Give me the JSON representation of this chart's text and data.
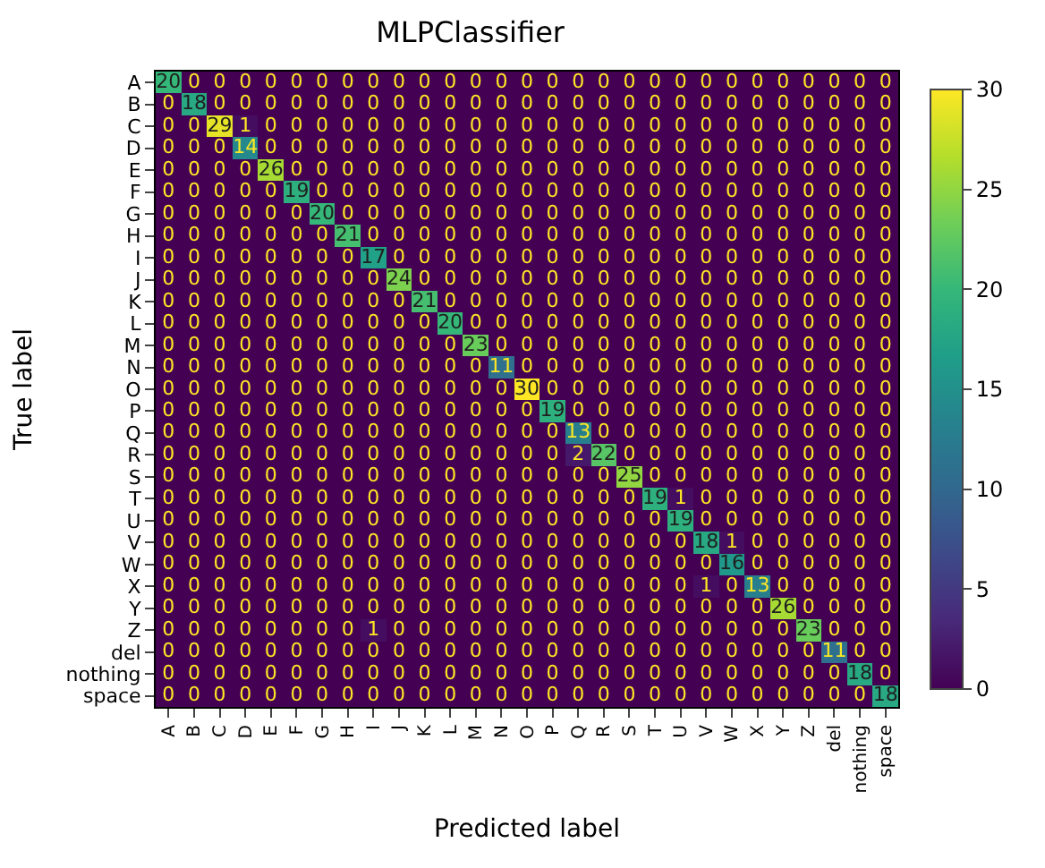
{
  "chart_data": {
    "type": "heatmap",
    "title": "MLPClassifier",
    "xlabel": "Predicted label",
    "ylabel": "True label",
    "categories": [
      "A",
      "B",
      "C",
      "D",
      "E",
      "F",
      "G",
      "H",
      "I",
      "J",
      "K",
      "L",
      "M",
      "N",
      "O",
      "P",
      "Q",
      "R",
      "S",
      "T",
      "U",
      "V",
      "W",
      "X",
      "Y",
      "Z",
      "del",
      "nothing",
      "space"
    ],
    "y_categories": [
      "A",
      "B",
      "C",
      "D",
      "E",
      "F",
      "G",
      "H",
      "I",
      "J",
      "K",
      "L",
      "M",
      "N",
      "O",
      "P",
      "Q",
      "R",
      "S",
      "T",
      "U",
      "V",
      "W",
      "X",
      "Y",
      "Z",
      "del",
      "nothing",
      "space"
    ],
    "cells": [
      [
        20,
        0,
        0,
        0,
        0,
        0,
        0,
        0,
        0,
        0,
        0,
        0,
        0,
        0,
        0,
        0,
        0,
        0,
        0,
        0,
        0,
        0,
        0,
        0,
        0,
        0,
        0,
        0,
        0
      ],
      [
        0,
        18,
        0,
        0,
        0,
        0,
        0,
        0,
        0,
        0,
        0,
        0,
        0,
        0,
        0,
        0,
        0,
        0,
        0,
        0,
        0,
        0,
        0,
        0,
        0,
        0,
        0,
        0,
        0
      ],
      [
        0,
        0,
        29,
        1,
        0,
        0,
        0,
        0,
        0,
        0,
        0,
        0,
        0,
        0,
        0,
        0,
        0,
        0,
        0,
        0,
        0,
        0,
        0,
        0,
        0,
        0,
        0,
        0,
        0
      ],
      [
        0,
        0,
        0,
        14,
        0,
        0,
        0,
        0,
        0,
        0,
        0,
        0,
        0,
        0,
        0,
        0,
        0,
        0,
        0,
        0,
        0,
        0,
        0,
        0,
        0,
        0,
        0,
        0,
        0
      ],
      [
        0,
        0,
        0,
        0,
        26,
        0,
        0,
        0,
        0,
        0,
        0,
        0,
        0,
        0,
        0,
        0,
        0,
        0,
        0,
        0,
        0,
        0,
        0,
        0,
        0,
        0,
        0,
        0,
        0
      ],
      [
        0,
        0,
        0,
        0,
        0,
        19,
        0,
        0,
        0,
        0,
        0,
        0,
        0,
        0,
        0,
        0,
        0,
        0,
        0,
        0,
        0,
        0,
        0,
        0,
        0,
        0,
        0,
        0,
        0
      ],
      [
        0,
        0,
        0,
        0,
        0,
        0,
        20,
        0,
        0,
        0,
        0,
        0,
        0,
        0,
        0,
        0,
        0,
        0,
        0,
        0,
        0,
        0,
        0,
        0,
        0,
        0,
        0,
        0,
        0
      ],
      [
        0,
        0,
        0,
        0,
        0,
        0,
        0,
        21,
        0,
        0,
        0,
        0,
        0,
        0,
        0,
        0,
        0,
        0,
        0,
        0,
        0,
        0,
        0,
        0,
        0,
        0,
        0,
        0,
        0
      ],
      [
        0,
        0,
        0,
        0,
        0,
        0,
        0,
        0,
        17,
        0,
        0,
        0,
        0,
        0,
        0,
        0,
        0,
        0,
        0,
        0,
        0,
        0,
        0,
        0,
        0,
        0,
        0,
        0,
        0
      ],
      [
        0,
        0,
        0,
        0,
        0,
        0,
        0,
        0,
        0,
        24,
        0,
        0,
        0,
        0,
        0,
        0,
        0,
        0,
        0,
        0,
        0,
        0,
        0,
        0,
        0,
        0,
        0,
        0,
        0
      ],
      [
        0,
        0,
        0,
        0,
        0,
        0,
        0,
        0,
        0,
        0,
        21,
        0,
        0,
        0,
        0,
        0,
        0,
        0,
        0,
        0,
        0,
        0,
        0,
        0,
        0,
        0,
        0,
        0,
        0
      ],
      [
        0,
        0,
        0,
        0,
        0,
        0,
        0,
        0,
        0,
        0,
        0,
        20,
        0,
        0,
        0,
        0,
        0,
        0,
        0,
        0,
        0,
        0,
        0,
        0,
        0,
        0,
        0,
        0,
        0
      ],
      [
        0,
        0,
        0,
        0,
        0,
        0,
        0,
        0,
        0,
        0,
        0,
        0,
        23,
        0,
        0,
        0,
        0,
        0,
        0,
        0,
        0,
        0,
        0,
        0,
        0,
        0,
        0,
        0,
        0
      ],
      [
        0,
        0,
        0,
        0,
        0,
        0,
        0,
        0,
        0,
        0,
        0,
        0,
        0,
        11,
        0,
        0,
        0,
        0,
        0,
        0,
        0,
        0,
        0,
        0,
        0,
        0,
        0,
        0,
        0
      ],
      [
        0,
        0,
        0,
        0,
        0,
        0,
        0,
        0,
        0,
        0,
        0,
        0,
        0,
        0,
        30,
        0,
        0,
        0,
        0,
        0,
        0,
        0,
        0,
        0,
        0,
        0,
        0,
        0,
        0
      ],
      [
        0,
        0,
        0,
        0,
        0,
        0,
        0,
        0,
        0,
        0,
        0,
        0,
        0,
        0,
        0,
        19,
        0,
        0,
        0,
        0,
        0,
        0,
        0,
        0,
        0,
        0,
        0,
        0,
        0
      ],
      [
        0,
        0,
        0,
        0,
        0,
        0,
        0,
        0,
        0,
        0,
        0,
        0,
        0,
        0,
        0,
        0,
        13,
        0,
        0,
        0,
        0,
        0,
        0,
        0,
        0,
        0,
        0,
        0,
        0
      ],
      [
        0,
        0,
        0,
        0,
        0,
        0,
        0,
        0,
        0,
        0,
        0,
        0,
        0,
        0,
        0,
        0,
        2,
        22,
        0,
        0,
        0,
        0,
        0,
        0,
        0,
        0,
        0,
        0,
        0
      ],
      [
        0,
        0,
        0,
        0,
        0,
        0,
        0,
        0,
        0,
        0,
        0,
        0,
        0,
        0,
        0,
        0,
        0,
        0,
        25,
        0,
        0,
        0,
        0,
        0,
        0,
        0,
        0,
        0,
        0
      ],
      [
        0,
        0,
        0,
        0,
        0,
        0,
        0,
        0,
        0,
        0,
        0,
        0,
        0,
        0,
        0,
        0,
        0,
        0,
        0,
        19,
        1,
        0,
        0,
        0,
        0,
        0,
        0,
        0,
        0
      ],
      [
        0,
        0,
        0,
        0,
        0,
        0,
        0,
        0,
        0,
        0,
        0,
        0,
        0,
        0,
        0,
        0,
        0,
        0,
        0,
        0,
        19,
        0,
        0,
        0,
        0,
        0,
        0,
        0,
        0
      ],
      [
        0,
        0,
        0,
        0,
        0,
        0,
        0,
        0,
        0,
        0,
        0,
        0,
        0,
        0,
        0,
        0,
        0,
        0,
        0,
        0,
        0,
        18,
        1,
        0,
        0,
        0,
        0,
        0,
        0
      ],
      [
        0,
        0,
        0,
        0,
        0,
        0,
        0,
        0,
        0,
        0,
        0,
        0,
        0,
        0,
        0,
        0,
        0,
        0,
        0,
        0,
        0,
        0,
        16,
        0,
        0,
        0,
        0,
        0,
        0
      ],
      [
        0,
        0,
        0,
        0,
        0,
        0,
        0,
        0,
        0,
        0,
        0,
        0,
        0,
        0,
        0,
        0,
        0,
        0,
        0,
        0,
        0,
        1,
        0,
        13,
        0,
        0,
        0,
        0,
        0
      ],
      [
        0,
        0,
        0,
        0,
        0,
        0,
        0,
        0,
        0,
        0,
        0,
        0,
        0,
        0,
        0,
        0,
        0,
        0,
        0,
        0,
        0,
        0,
        0,
        0,
        26,
        0,
        0,
        0,
        0
      ],
      [
        0,
        0,
        0,
        0,
        0,
        0,
        0,
        0,
        1,
        0,
        0,
        0,
        0,
        0,
        0,
        0,
        0,
        0,
        0,
        0,
        0,
        0,
        0,
        0,
        0,
        23,
        0,
        0,
        0
      ],
      [
        0,
        0,
        0,
        0,
        0,
        0,
        0,
        0,
        0,
        0,
        0,
        0,
        0,
        0,
        0,
        0,
        0,
        0,
        0,
        0,
        0,
        0,
        0,
        0,
        0,
        0,
        11,
        0,
        0
      ],
      [
        0,
        0,
        0,
        0,
        0,
        0,
        0,
        0,
        0,
        0,
        0,
        0,
        0,
        0,
        0,
        0,
        0,
        0,
        0,
        0,
        0,
        0,
        0,
        0,
        0,
        0,
        0,
        18,
        0
      ],
      [
        0,
        0,
        0,
        0,
        0,
        0,
        0,
        0,
        0,
        0,
        0,
        0,
        0,
        0,
        0,
        0,
        0,
        0,
        0,
        0,
        0,
        0,
        0,
        0,
        0,
        0,
        0,
        0,
        18
      ]
    ],
    "clim": [
      0,
      30
    ],
    "cticks": [
      0,
      5,
      10,
      15,
      20,
      25,
      30
    ],
    "data_labels": true
  }
}
